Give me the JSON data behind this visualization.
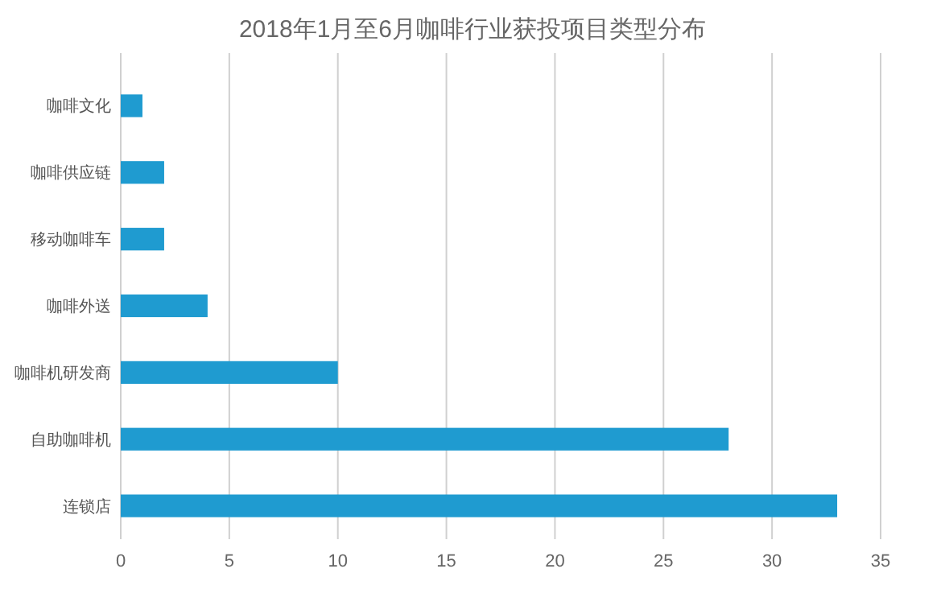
{
  "chart_data": {
    "type": "bar",
    "orientation": "horizontal",
    "title": "2018年1月至6月咖啡行业获投项目类型分布",
    "categories": [
      "咖啡文化",
      "咖啡供应链",
      "移动咖啡车",
      "咖啡外送",
      "咖啡机研发商",
      "自助咖啡机",
      "连锁店"
    ],
    "values": [
      1,
      2,
      2,
      4,
      10,
      28,
      33
    ],
    "color": "#1f9bd0",
    "xlim": [
      0,
      35
    ],
    "xticks": [
      0,
      5,
      10,
      15,
      20,
      25,
      30,
      35
    ],
    "grid": "x"
  }
}
